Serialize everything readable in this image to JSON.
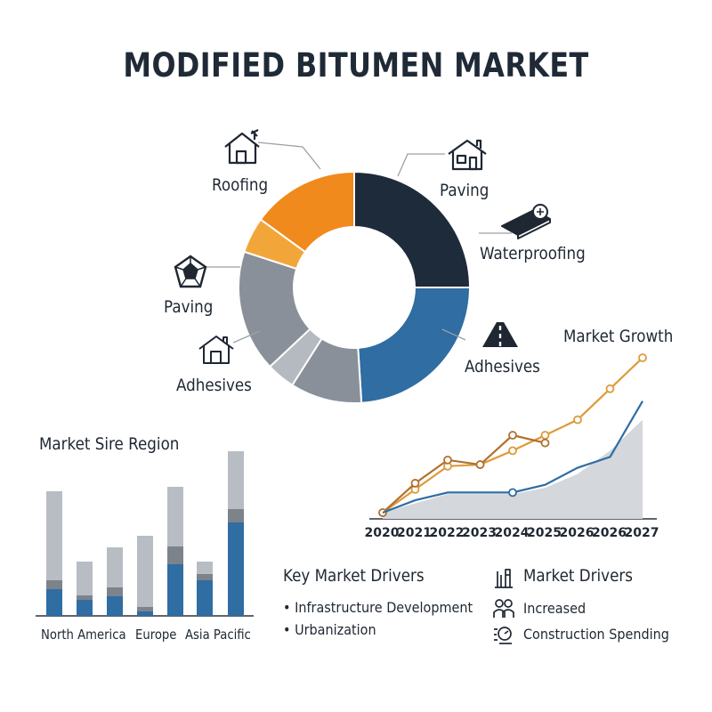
{
  "title": "MODIFIED BITUMEN MARKET",
  "colors": {
    "navy": "#1e2b3a",
    "blue": "#2f6da3",
    "gray": "#8a9099",
    "light_gray": "#b5b9c0",
    "orange": "#f08a1c",
    "amber": "#f2a63a",
    "line_orange": "#dd9a3a",
    "line_brown": "#b3702d",
    "line_blue": "#2f6da3"
  },
  "donut": {
    "labels": {
      "roofing": "Roofing",
      "paving_right": "Paving",
      "waterproofing": "Waterproofing",
      "paving_left": "Paving",
      "adhesives_left": "Adhesives",
      "adhesives_right": "Adhesives"
    }
  },
  "chart_data": [
    {
      "type": "pie",
      "variant": "donut",
      "slices": [
        {
          "label": "Paving",
          "value": 25,
          "color": "#1e2b3a"
        },
        {
          "label": "Adhesives",
          "value": 24,
          "color": "#2f6da3"
        },
        {
          "label": "",
          "value": 10,
          "color": "#8a9099"
        },
        {
          "label": "",
          "value": 4,
          "color": "#b5b9c0"
        },
        {
          "label": "Paving / Adhesives",
          "value": 17,
          "color": "#8a9099"
        },
        {
          "label": "",
          "value": 5,
          "color": "#f2a63a"
        },
        {
          "label": "Roofing",
          "value": 15,
          "color": "#f08a1c"
        }
      ]
    },
    {
      "type": "bar",
      "title": "Market Sire Region",
      "stacked": true,
      "categories": [
        "North America",
        "Europe",
        "Asia Pacific"
      ],
      "bars": [
        {
          "segments": [
            30,
            10,
            100
          ]
        },
        {
          "segments": [
            18,
            5,
            38
          ]
        },
        {
          "segments": [
            22,
            10,
            45
          ]
        },
        {
          "segments": [
            5,
            5,
            80
          ]
        },
        {
          "segments": [
            58,
            20,
            67
          ]
        },
        {
          "segments": [
            40,
            7,
            14
          ]
        },
        {
          "segments": [
            105,
            15,
            65
          ]
        }
      ],
      "series_colors": [
        "#2f6da3",
        "#7d838b",
        "#b8bcc3"
      ]
    },
    {
      "type": "line",
      "title": "Market Growth",
      "x": [
        "2020",
        "2021",
        "2022",
        "2023",
        "2024",
        "2025",
        "2026",
        "2026",
        "2027"
      ],
      "series": [
        {
          "values": [
            0,
            15,
            30,
            31,
            40,
            50,
            60,
            80,
            100
          ],
          "color": "#dd9a3a",
          "marker": "circle"
        },
        {
          "values": [
            0,
            19,
            34,
            31,
            50,
            45,
            null,
            null,
            null
          ],
          "color": "#b3702d",
          "marker": "circle"
        },
        {
          "values": [
            0,
            8,
            13,
            13,
            13,
            18,
            29,
            36,
            72
          ],
          "color": "#2f6da3",
          "marker": "none"
        },
        {
          "values": [
            0,
            6,
            12,
            12,
            12,
            16,
            25,
            40,
            60
          ],
          "type": "area",
          "color": "#d4d7dc"
        }
      ]
    }
  ],
  "drivers_left": {
    "heading": "Key Market Drivers",
    "items": [
      "Infrastructure Development",
      "Urbanization"
    ]
  },
  "drivers_right": {
    "heading": "Market Drivers",
    "items": [
      "Increased",
      "Construction Spending"
    ]
  }
}
